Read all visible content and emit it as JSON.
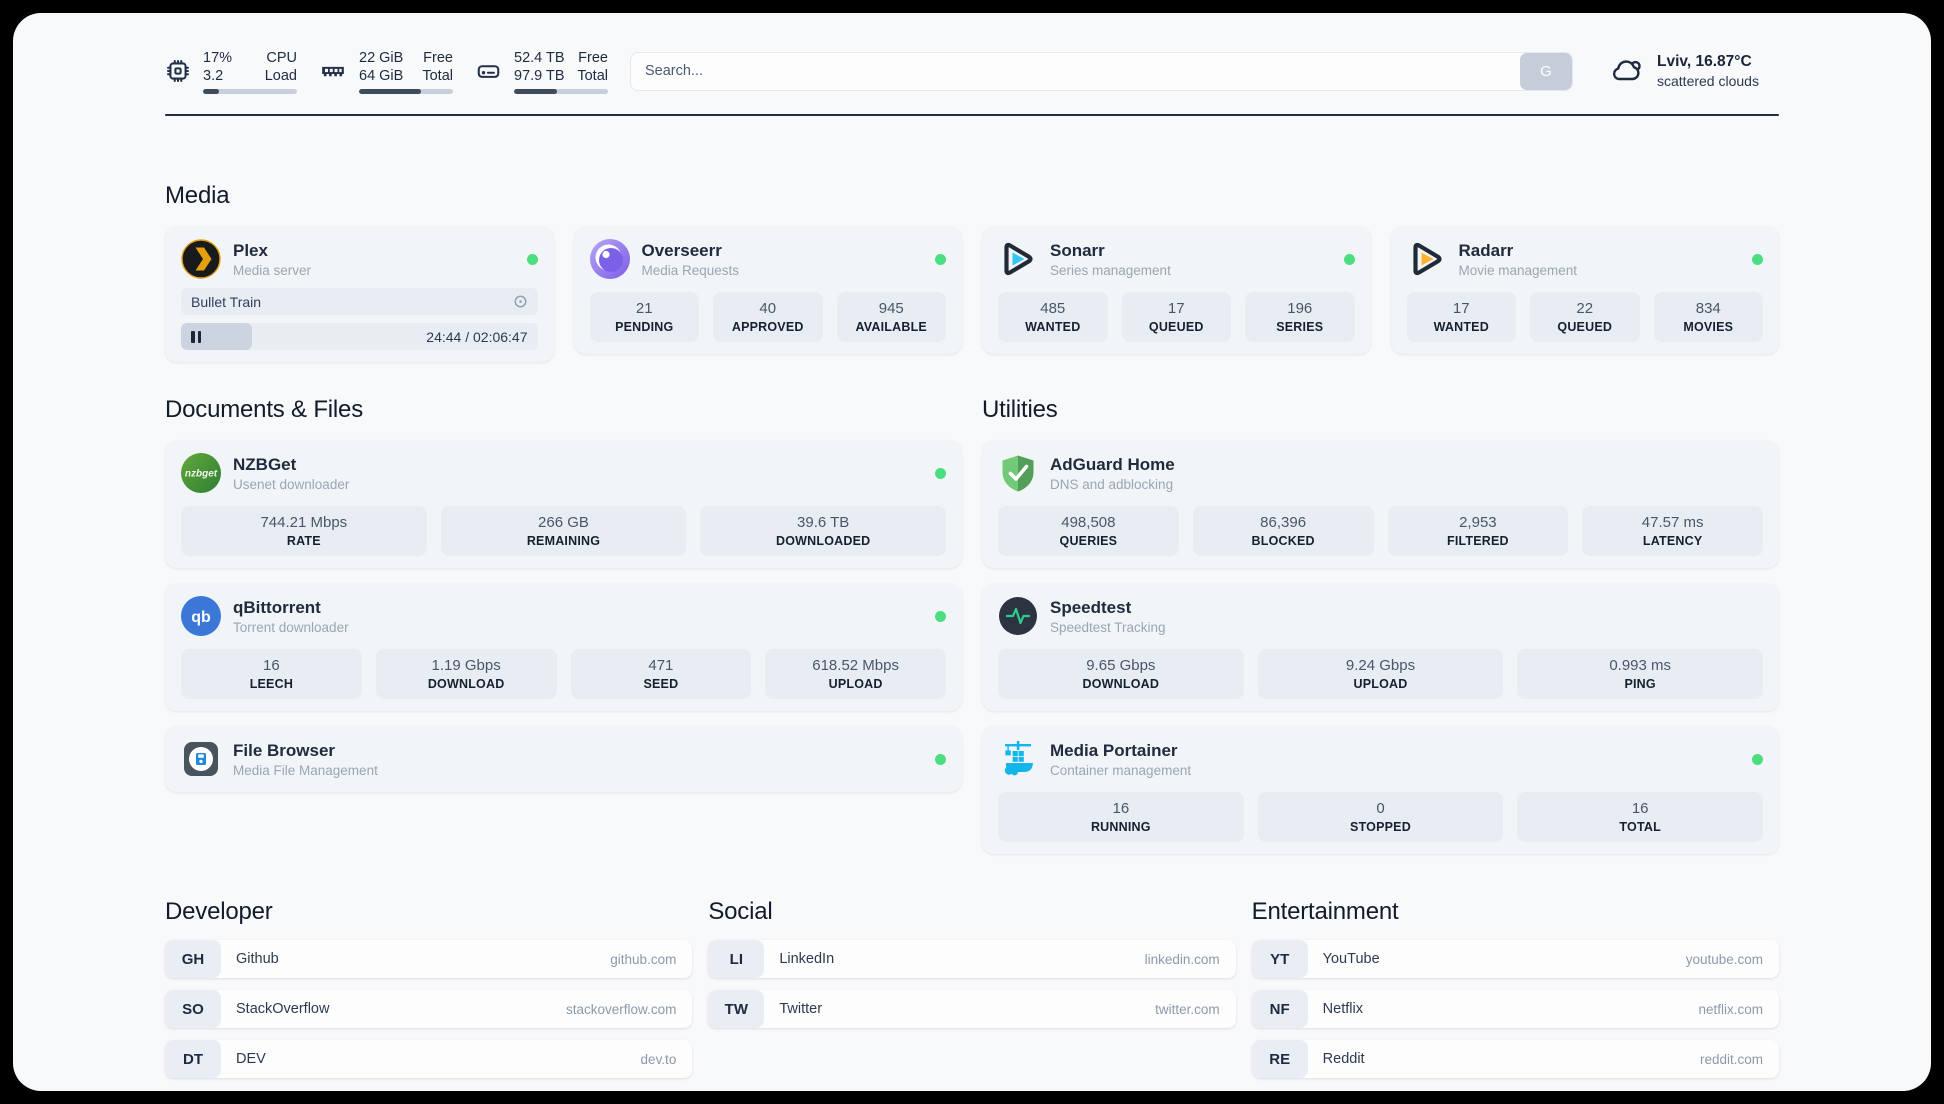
{
  "topbar": {
    "cpu": {
      "value1": "17%",
      "value2": "3.2",
      "label1": "CPU",
      "label2": "Load",
      "progress": 17
    },
    "memory": {
      "value1": "22 GiB",
      "value2": "64 GiB",
      "label1": "Free",
      "label2": "Total",
      "progress": 66
    },
    "disk": {
      "value1": "52.4 TB",
      "value2": "97.9 TB",
      "label1": "Free",
      "label2": "Total",
      "progress": 46
    },
    "search": {
      "placeholder": "Search...",
      "button_label": "G"
    },
    "weather": {
      "summary": "Lviv, 16.87°C",
      "condition": "scattered clouds"
    }
  },
  "media": {
    "title": "Media",
    "cards": [
      {
        "title": "Plex",
        "subtitle": "Media server",
        "status": "online",
        "player": {
          "track": "Bullet Train",
          "time": "24:44 / 02:06:47",
          "progress": 20
        }
      },
      {
        "title": "Overseerr",
        "subtitle": "Media Requests",
        "status": "online",
        "stats": [
          {
            "value": "21",
            "label": "PENDING"
          },
          {
            "value": "40",
            "label": "APPROVED"
          },
          {
            "value": "945",
            "label": "AVAILABLE"
          }
        ]
      },
      {
        "title": "Sonarr",
        "subtitle": "Series management",
        "status": "online",
        "stats": [
          {
            "value": "485",
            "label": "WANTED"
          },
          {
            "value": "17",
            "label": "QUEUED"
          },
          {
            "value": "196",
            "label": "SERIES"
          }
        ]
      },
      {
        "title": "Radarr",
        "subtitle": "Movie management",
        "status": "online",
        "stats": [
          {
            "value": "17",
            "label": "WANTED"
          },
          {
            "value": "22",
            "label": "QUEUED"
          },
          {
            "value": "834",
            "label": "MOVIES"
          }
        ]
      }
    ]
  },
  "documents": {
    "title": "Documents & Files",
    "cards": [
      {
        "title": "NZBGet",
        "subtitle": "Usenet downloader",
        "status": "online",
        "stats": [
          {
            "value": "744.21 Mbps",
            "label": "RATE"
          },
          {
            "value": "266 GB",
            "label": "REMAINING"
          },
          {
            "value": "39.6 TB",
            "label": "DOWNLOADED"
          }
        ]
      },
      {
        "title": "qBittorrent",
        "subtitle": "Torrent downloader",
        "status": "online",
        "stats": [
          {
            "value": "16",
            "label": "LEECH"
          },
          {
            "value": "1.19 Gbps",
            "label": "DOWNLOAD"
          },
          {
            "value": "471",
            "label": "SEED"
          },
          {
            "value": "618.52 Mbps",
            "label": "UPLOAD"
          }
        ]
      },
      {
        "title": "File Browser",
        "subtitle": "Media File Management",
        "status": "online"
      }
    ]
  },
  "utilities": {
    "title": "Utilities",
    "cards": [
      {
        "title": "AdGuard Home",
        "subtitle": "DNS and adblocking",
        "stats": [
          {
            "value": "498,508",
            "label": "QUERIES"
          },
          {
            "value": "86,396",
            "label": "BLOCKED"
          },
          {
            "value": "2,953",
            "label": "FILTERED"
          },
          {
            "value": "47.57 ms",
            "label": "LATENCY"
          }
        ]
      },
      {
        "title": "Speedtest",
        "subtitle": "Speedtest Tracking",
        "stats": [
          {
            "value": "9.65 Gbps",
            "label": "DOWNLOAD"
          },
          {
            "value": "9.24 Gbps",
            "label": "UPLOAD"
          },
          {
            "value": "0.993 ms",
            "label": "PING"
          }
        ]
      },
      {
        "title": "Media Portainer",
        "subtitle": "Container management",
        "status": "online",
        "stats": [
          {
            "value": "16",
            "label": "RUNNING"
          },
          {
            "value": "0",
            "label": "STOPPED"
          },
          {
            "value": "16",
            "label": "TOTAL"
          }
        ]
      }
    ]
  },
  "bookmarks": {
    "developer": {
      "title": "Developer",
      "items": [
        {
          "abbr": "GH",
          "name": "Github",
          "url": "github.com"
        },
        {
          "abbr": "SO",
          "name": "StackOverflow",
          "url": "stackoverflow.com"
        },
        {
          "abbr": "DT",
          "name": "DEV",
          "url": "dev.to"
        }
      ]
    },
    "social": {
      "title": "Social",
      "items": [
        {
          "abbr": "LI",
          "name": "LinkedIn",
          "url": "linkedin.com"
        },
        {
          "abbr": "TW",
          "name": "Twitter",
          "url": "twitter.com"
        }
      ]
    },
    "entertainment": {
      "title": "Entertainment",
      "items": [
        {
          "abbr": "YT",
          "name": "YouTube",
          "url": "youtube.com"
        },
        {
          "abbr": "NF",
          "name": "Netflix",
          "url": "netflix.com"
        },
        {
          "abbr": "RE",
          "name": "Reddit",
          "url": "reddit.com"
        }
      ]
    }
  },
  "colors": {
    "status_online": "#4ade80",
    "progress_fill": "#3e4a5e",
    "plex_yellow": "#e5a00d",
    "sonarr_cyan": "#36c6f4",
    "radarr_orange": "#ffb331",
    "nzbget_green": "#3d8b37",
    "qbittorrent_blue": "#3a77d6",
    "adguard_green": "#5bb863",
    "speedtest_pulse": "#2ecc8f",
    "portainer_blue": "#13b5ea",
    "overseerr_purple": "#7b61e8"
  }
}
